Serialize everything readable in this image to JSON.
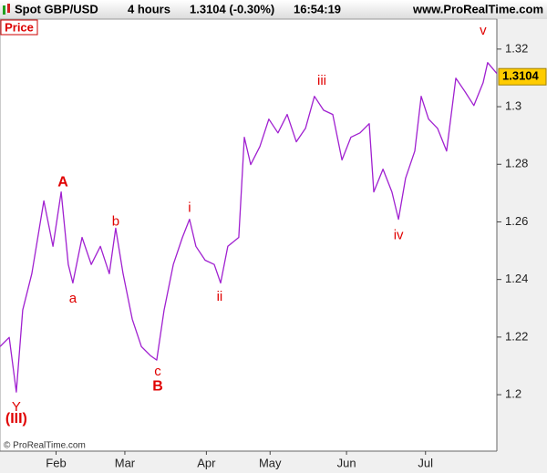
{
  "chart_data": {
    "type": "line",
    "header": [
      "Spot GBP/USD",
      "4 hours",
      "1.3104 (-0.30%)",
      "16:54:19"
    ],
    "site": "www.ProRealTime.com",
    "panel_label": "Price",
    "copyright": "© ProRealTime.com",
    "series": [
      {
        "name": "Spot GBP/USD",
        "color": "#a020d0",
        "x": [
          0,
          3.6,
          6.4,
          8.9,
          12.5,
          17.2,
          20.8,
          24,
          26.8,
          28.6,
          32.2,
          35.8,
          39.4,
          42.9,
          45.4,
          48.3,
          51.9,
          55.5,
          59,
          61.5,
          64.4,
          68,
          71.6,
          74.4,
          76.9,
          80.5,
          84.1,
          86.6,
          89.4,
          93.7,
          95.9,
          98.4,
          102,
          105.5,
          109.1,
          112.7,
          116.3,
          119.9,
          123.4,
          127,
          130.6,
          134.2,
          137.7,
          141.3,
          144.9,
          146.7,
          150.3,
          153.8,
          156.4,
          159.2,
          162.8,
          165.3,
          168.2,
          171.7,
          175.3,
          178.9,
          182.5,
          186,
          189.6,
          191.4,
          195
        ],
        "values": [
          1.2167,
          1.2199,
          1.2009,
          1.2294,
          1.242,
          1.2673,
          1.2515,
          1.2704,
          1.2452,
          1.2388,
          1.2546,
          1.2452,
          1.2515,
          1.242,
          1.2578,
          1.242,
          1.2262,
          1.2167,
          1.2136,
          1.212,
          1.2294,
          1.2452,
          1.2546,
          1.2609,
          1.2515,
          1.2467,
          1.2452,
          1.2388,
          1.2515,
          1.2546,
          1.2894,
          1.2799,
          1.2862,
          1.2957,
          1.2909,
          1.2973,
          1.2878,
          1.2925,
          1.3036,
          1.2988,
          1.2973,
          1.2815,
          1.2894,
          1.2909,
          1.2941,
          1.2704,
          1.2783,
          1.2704,
          1.2609,
          1.2752,
          1.2846,
          1.3036,
          1.2957,
          1.2925,
          1.2846,
          1.3099,
          1.3052,
          1.3004,
          1.3083,
          1.3153,
          1.3115
        ]
      }
    ],
    "last_price": 1.3104,
    "xlim": [
      0,
      195
    ],
    "xticks": [
      {
        "value": 22,
        "label": "Feb"
      },
      {
        "value": 49,
        "label": "Mar"
      },
      {
        "value": 81,
        "label": "Apr"
      },
      {
        "value": 106,
        "label": "May"
      },
      {
        "value": 136,
        "label": "Jun"
      },
      {
        "value": 167,
        "label": "Jul"
      }
    ],
    "ylim": [
      1.1804,
      1.3304
    ],
    "yticks": [
      1.2,
      1.22,
      1.24,
      1.26,
      1.28,
      1.3,
      1.32
    ],
    "annotations": [
      {
        "text": "A",
        "x": 24.7,
        "y": 1.2736,
        "bold": true
      },
      {
        "text": "a",
        "x": 28.6,
        "y": 1.2332,
        "bold": false
      },
      {
        "text": "b",
        "x": 45.4,
        "y": 1.26,
        "bold": false
      },
      {
        "text": "c",
        "x": 61.9,
        "y": 1.2079,
        "bold": false
      },
      {
        "text": "B",
        "x": 61.9,
        "y": 1.2028,
        "bold": true
      },
      {
        "text": "i",
        "x": 74.4,
        "y": 1.2647,
        "bold": false
      },
      {
        "text": "ii",
        "x": 86.2,
        "y": 1.2338,
        "bold": false
      },
      {
        "text": "iii",
        "x": 126.3,
        "y": 1.3089,
        "bold": false
      },
      {
        "text": "iv",
        "x": 156.4,
        "y": 1.2553,
        "bold": false
      },
      {
        "text": "v",
        "x": 189.6,
        "y": 1.3263,
        "bold": false
      },
      {
        "text": "Y",
        "x": 6.4,
        "y": 1.1956,
        "bold": false
      },
      {
        "text": "(III)",
        "x": 6.4,
        "y": 1.1915,
        "bold": true
      }
    ]
  }
}
